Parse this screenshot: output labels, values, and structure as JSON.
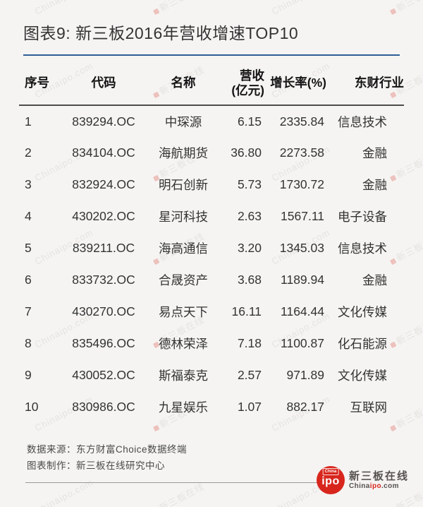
{
  "title": "图表9: 新三板2016年营收增速TOP10",
  "chart_data": {
    "type": "table",
    "title": "图表9: 新三板2016年营收增速TOP10",
    "columns": [
      "序号",
      "代码",
      "名称",
      "营收\n(亿元)",
      "增长率(%)",
      "东财行业"
    ],
    "rows": [
      [
        "1",
        "839294.OC",
        "中琛源",
        "6.15",
        "2335.84",
        "信息技术"
      ],
      [
        "2",
        "834104.OC",
        "海航期货",
        "36.80",
        "2273.58",
        "金融"
      ],
      [
        "3",
        "832924.OC",
        "明石创新",
        "5.73",
        "1730.72",
        "金融"
      ],
      [
        "4",
        "430202.OC",
        "星河科技",
        "2.63",
        "1567.11",
        "电子设备"
      ],
      [
        "5",
        "839211.OC",
        "海高通信",
        "3.20",
        "1345.03",
        "信息技术"
      ],
      [
        "6",
        "833732.OC",
        "合晟资产",
        "3.68",
        "1189.94",
        "金融"
      ],
      [
        "7",
        "430270.OC",
        "易点天下",
        "16.11",
        "1164.44",
        "文化传媒"
      ],
      [
        "8",
        "835496.OC",
        "德林荣泽",
        "7.18",
        "1100.87",
        "化石能源"
      ],
      [
        "9",
        "430052.OC",
        "斯福泰克",
        "2.57",
        "971.89",
        "文化传媒"
      ],
      [
        "10",
        "830986.OC",
        "九星娱乐",
        "1.07",
        "882.17",
        "互联网"
      ]
    ]
  },
  "footer": {
    "source_note": "数据来源：东方财富Choice数据终端",
    "maker_note": "图表制作：新三板在线研究中心"
  },
  "logo": {
    "ribbon_text": "China",
    "circle_text": "ipo",
    "name": "新三板在线",
    "site_prefix": "China",
    "site_accent": "ipo",
    "site_suffix": ".com"
  },
  "watermark": {
    "texts": [
      "Chinaipo.com",
      "新三板在线"
    ]
  },
  "colors": {
    "accent_blue": "#2e5e96",
    "logo_red": "#d8261d",
    "header_line": "#4d4d4d"
  }
}
